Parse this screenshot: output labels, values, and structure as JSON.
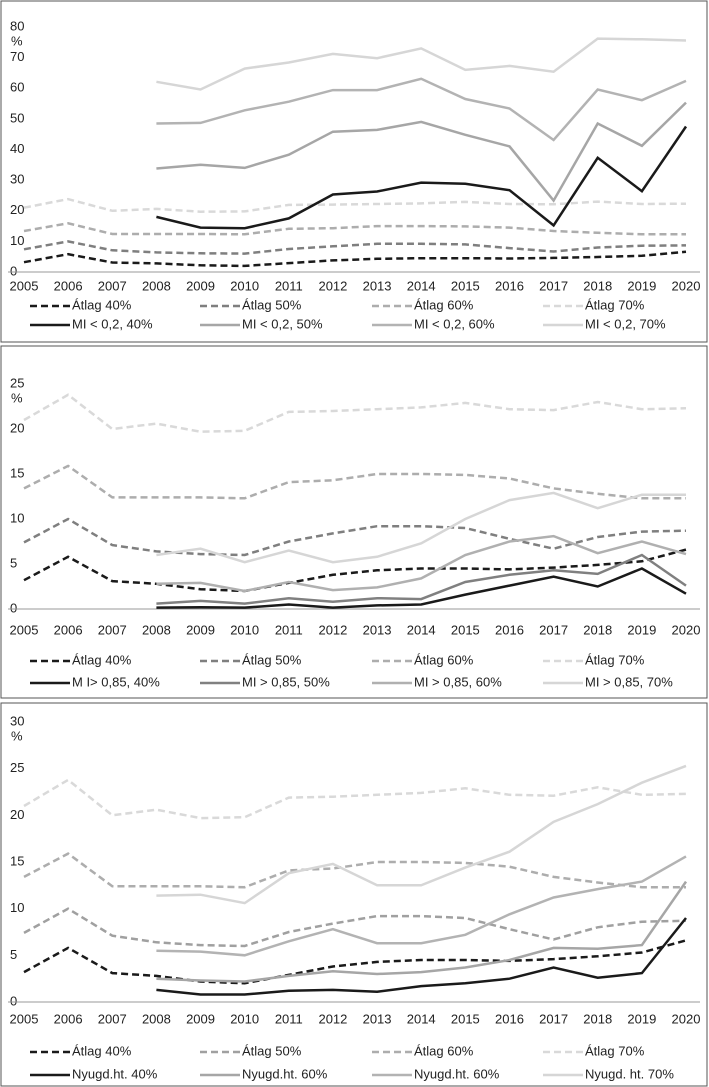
{
  "chart_data": [
    {
      "type": "line",
      "y_unit": "%",
      "categories": [
        "2005",
        "2006",
        "2007",
        "2008",
        "2009",
        "2010",
        "2011",
        "2012",
        "2013",
        "2014",
        "2015",
        "2016",
        "2017",
        "2018",
        "2019",
        "2020"
      ],
      "ylim": [
        0,
        80
      ],
      "yticks": [
        0,
        10,
        20,
        30,
        40,
        50,
        60,
        70,
        80
      ],
      "series": [
        {
          "name": "Átlag 40%",
          "color": "#1a1a1a",
          "dashed": true,
          "values": [
            3.2,
            5.8,
            3.1,
            2.8,
            2.2,
            2.0,
            2.9,
            3.8,
            4.3,
            4.5,
            4.5,
            4.4,
            4.6,
            4.9,
            5.3,
            6.6
          ]
        },
        {
          "name": "Átlag 50%",
          "color": "#7f7f7f",
          "dashed": true,
          "values": [
            7.4,
            10.0,
            7.1,
            6.4,
            6.1,
            6.0,
            7.5,
            8.4,
            9.2,
            9.2,
            9.0,
            7.8,
            6.7,
            8.0,
            8.6,
            8.7
          ]
        },
        {
          "name": "Átlag 60%",
          "color": "#adadad",
          "dashed": true,
          "values": [
            13.4,
            15.9,
            12.4,
            12.4,
            12.4,
            12.3,
            14.1,
            14.3,
            15.0,
            15.0,
            14.9,
            14.5,
            13.4,
            12.8,
            12.3,
            12.3
          ]
        },
        {
          "name": "Átlag 70%",
          "color": "#d9d9d9",
          "dashed": true,
          "values": [
            21.0,
            23.8,
            20.0,
            20.6,
            19.7,
            19.8,
            21.9,
            22.0,
            22.2,
            22.4,
            22.9,
            22.2,
            22.1,
            23.0,
            22.2,
            22.3
          ]
        },
        {
          "name": "MI < 0,2, 40%",
          "color": "#1a1a1a",
          "dashed": false,
          "values": [
            null,
            null,
            null,
            18.0,
            14.5,
            14.3,
            17.5,
            25.3,
            26.3,
            29.2,
            28.8,
            26.7,
            15.2,
            37.3,
            26.4,
            47.5
          ]
        },
        {
          "name": "MI < 0,2, 50%",
          "color": "#a6a6a6",
          "dashed": false,
          "values": [
            null,
            null,
            null,
            33.8,
            35.0,
            34.0,
            38.3,
            45.8,
            46.4,
            49.0,
            44.8,
            41.0,
            23.3,
            48.5,
            41.2,
            55.3
          ]
        },
        {
          "name": "MI < 0,2, 60%",
          "color": "#b3b3b3",
          "dashed": false,
          "values": [
            null,
            null,
            null,
            48.5,
            48.7,
            52.8,
            55.6,
            59.4,
            59.4,
            63.1,
            56.5,
            53.4,
            43.1,
            59.6,
            56.1,
            62.4
          ]
        },
        {
          "name": "MI < 0,2, 70%",
          "color": "#d6d6d6",
          "dashed": false,
          "values": [
            null,
            null,
            null,
            62.1,
            59.6,
            66.4,
            68.4,
            71.2,
            69.8,
            73.0,
            66.0,
            67.3,
            65.4,
            76.2,
            76.0,
            75.6
          ]
        }
      ]
    },
    {
      "type": "line",
      "y_unit": "%",
      "categories": [
        "2005",
        "2006",
        "2007",
        "2008",
        "2009",
        "2010",
        "2011",
        "2012",
        "2013",
        "2014",
        "2015",
        "2016",
        "2017",
        "2018",
        "2019",
        "2020"
      ],
      "ylim": [
        0,
        25
      ],
      "yticks": [
        0,
        5,
        10,
        15,
        20,
        25
      ],
      "series": [
        {
          "name": "Átlag 40%",
          "color": "#1a1a1a",
          "dashed": true,
          "values": [
            3.2,
            5.8,
            3.1,
            2.8,
            2.2,
            2.0,
            2.9,
            3.8,
            4.3,
            4.5,
            4.5,
            4.4,
            4.6,
            4.9,
            5.3,
            6.6
          ]
        },
        {
          "name": "Átlag 50%",
          "color": "#7f7f7f",
          "dashed": true,
          "values": [
            7.4,
            10.0,
            7.1,
            6.4,
            6.1,
            6.0,
            7.5,
            8.4,
            9.2,
            9.2,
            9.0,
            7.8,
            6.7,
            8.0,
            8.6,
            8.7
          ]
        },
        {
          "name": "Átlag 60%",
          "color": "#adadad",
          "dashed": true,
          "values": [
            13.4,
            15.9,
            12.4,
            12.4,
            12.4,
            12.3,
            14.1,
            14.3,
            15.0,
            15.0,
            14.9,
            14.5,
            13.4,
            12.8,
            12.3,
            12.3
          ]
        },
        {
          "name": "Átlag 70%",
          "color": "#d9d9d9",
          "dashed": true,
          "values": [
            21.0,
            23.8,
            20.0,
            20.6,
            19.7,
            19.8,
            21.9,
            22.0,
            22.2,
            22.4,
            22.9,
            22.2,
            22.1,
            23.0,
            22.2,
            22.3
          ]
        },
        {
          "name": "M I> 0,85, 40%",
          "color": "#1a1a1a",
          "dashed": false,
          "values": [
            null,
            null,
            null,
            0.15,
            0.2,
            0.15,
            0.5,
            0.15,
            0.4,
            0.5,
            1.6,
            2.6,
            3.6,
            2.5,
            4.5,
            1.7
          ]
        },
        {
          "name": "MI > 0,85, 50%",
          "color": "#808080",
          "dashed": false,
          "values": [
            null,
            null,
            null,
            0.6,
            0.9,
            0.6,
            1.2,
            0.8,
            1.2,
            1.1,
            3.0,
            3.8,
            4.3,
            3.9,
            6.0,
            2.6
          ]
        },
        {
          "name": "MI > 0,85, 60%",
          "color": "#b0b0b0",
          "dashed": false,
          "values": [
            null,
            null,
            null,
            2.8,
            2.9,
            2.0,
            3.0,
            2.1,
            2.4,
            3.4,
            6.0,
            7.5,
            8.1,
            6.2,
            7.5,
            6.1
          ]
        },
        {
          "name": "MI > 0,85, 70%",
          "color": "#d6d6d6",
          "dashed": false,
          "values": [
            null,
            null,
            null,
            6.0,
            6.7,
            5.2,
            6.5,
            5.2,
            5.8,
            7.3,
            10.0,
            12.1,
            12.9,
            11.2,
            12.7,
            12.7
          ]
        }
      ]
    },
    {
      "type": "line",
      "y_unit": "%",
      "categories": [
        "2005",
        "2006",
        "2007",
        "2008",
        "2009",
        "2010",
        "2011",
        "2012",
        "2013",
        "2014",
        "2015",
        "2016",
        "2017",
        "2018",
        "2019",
        "2020"
      ],
      "ylim": [
        0,
        30
      ],
      "yticks": [
        0,
        5,
        10,
        15,
        20,
        25,
        30
      ],
      "series": [
        {
          "name": "Átlag 40%",
          "color": "#1a1a1a",
          "dashed": true,
          "values": [
            3.2,
            5.8,
            3.1,
            2.8,
            2.2,
            2.0,
            2.9,
            3.8,
            4.3,
            4.5,
            4.5,
            4.4,
            4.6,
            4.9,
            5.3,
            6.6
          ]
        },
        {
          "name": "Átlag 50%",
          "color": "#a0a0a0",
          "dashed": true,
          "values": [
            7.4,
            10.0,
            7.1,
            6.4,
            6.1,
            6.0,
            7.5,
            8.4,
            9.2,
            9.2,
            9.0,
            7.8,
            6.7,
            8.0,
            8.6,
            8.7
          ]
        },
        {
          "name": "Átlag 60%",
          "color": "#adadad",
          "dashed": true,
          "values": [
            13.4,
            15.9,
            12.4,
            12.4,
            12.4,
            12.3,
            14.1,
            14.3,
            15.0,
            15.0,
            14.9,
            14.5,
            13.4,
            12.8,
            12.3,
            12.3
          ]
        },
        {
          "name": "Átlag 70%",
          "color": "#d9d9d9",
          "dashed": true,
          "values": [
            21.0,
            23.8,
            20.0,
            20.6,
            19.7,
            19.8,
            21.9,
            22.0,
            22.2,
            22.4,
            22.9,
            22.2,
            22.1,
            23.0,
            22.2,
            22.3
          ]
        },
        {
          "name": "Nyugd.ht. 40%",
          "color": "#1a1a1a",
          "dashed": false,
          "values": [
            null,
            null,
            null,
            1.3,
            0.8,
            0.8,
            1.2,
            1.3,
            1.1,
            1.7,
            2.0,
            2.5,
            3.7,
            2.6,
            3.1,
            9.0
          ]
        },
        {
          "name": "Nyugd.ht. 60%",
          "color": "#a6a6a6",
          "dashed": false,
          "values": [
            null,
            null,
            null,
            2.5,
            2.3,
            2.2,
            2.8,
            3.3,
            3.0,
            3.2,
            3.7,
            4.5,
            5.8,
            5.7,
            6.1,
            12.9
          ]
        },
        {
          "name": "Nyugd.ht.  60%",
          "color": "#b3b3b3",
          "dashed": false,
          "values": [
            null,
            null,
            null,
            5.5,
            5.4,
            5.0,
            6.5,
            7.8,
            6.3,
            6.3,
            7.2,
            9.4,
            11.2,
            12.1,
            12.9,
            15.6
          ]
        },
        {
          "name": "Nyugd. ht. 70%",
          "color": "#d6d6d6",
          "dashed": false,
          "values": [
            null,
            null,
            null,
            11.4,
            11.5,
            10.6,
            13.8,
            14.8,
            12.5,
            12.5,
            14.4,
            16.1,
            19.3,
            21.2,
            23.5,
            25.3
          ]
        }
      ]
    }
  ]
}
